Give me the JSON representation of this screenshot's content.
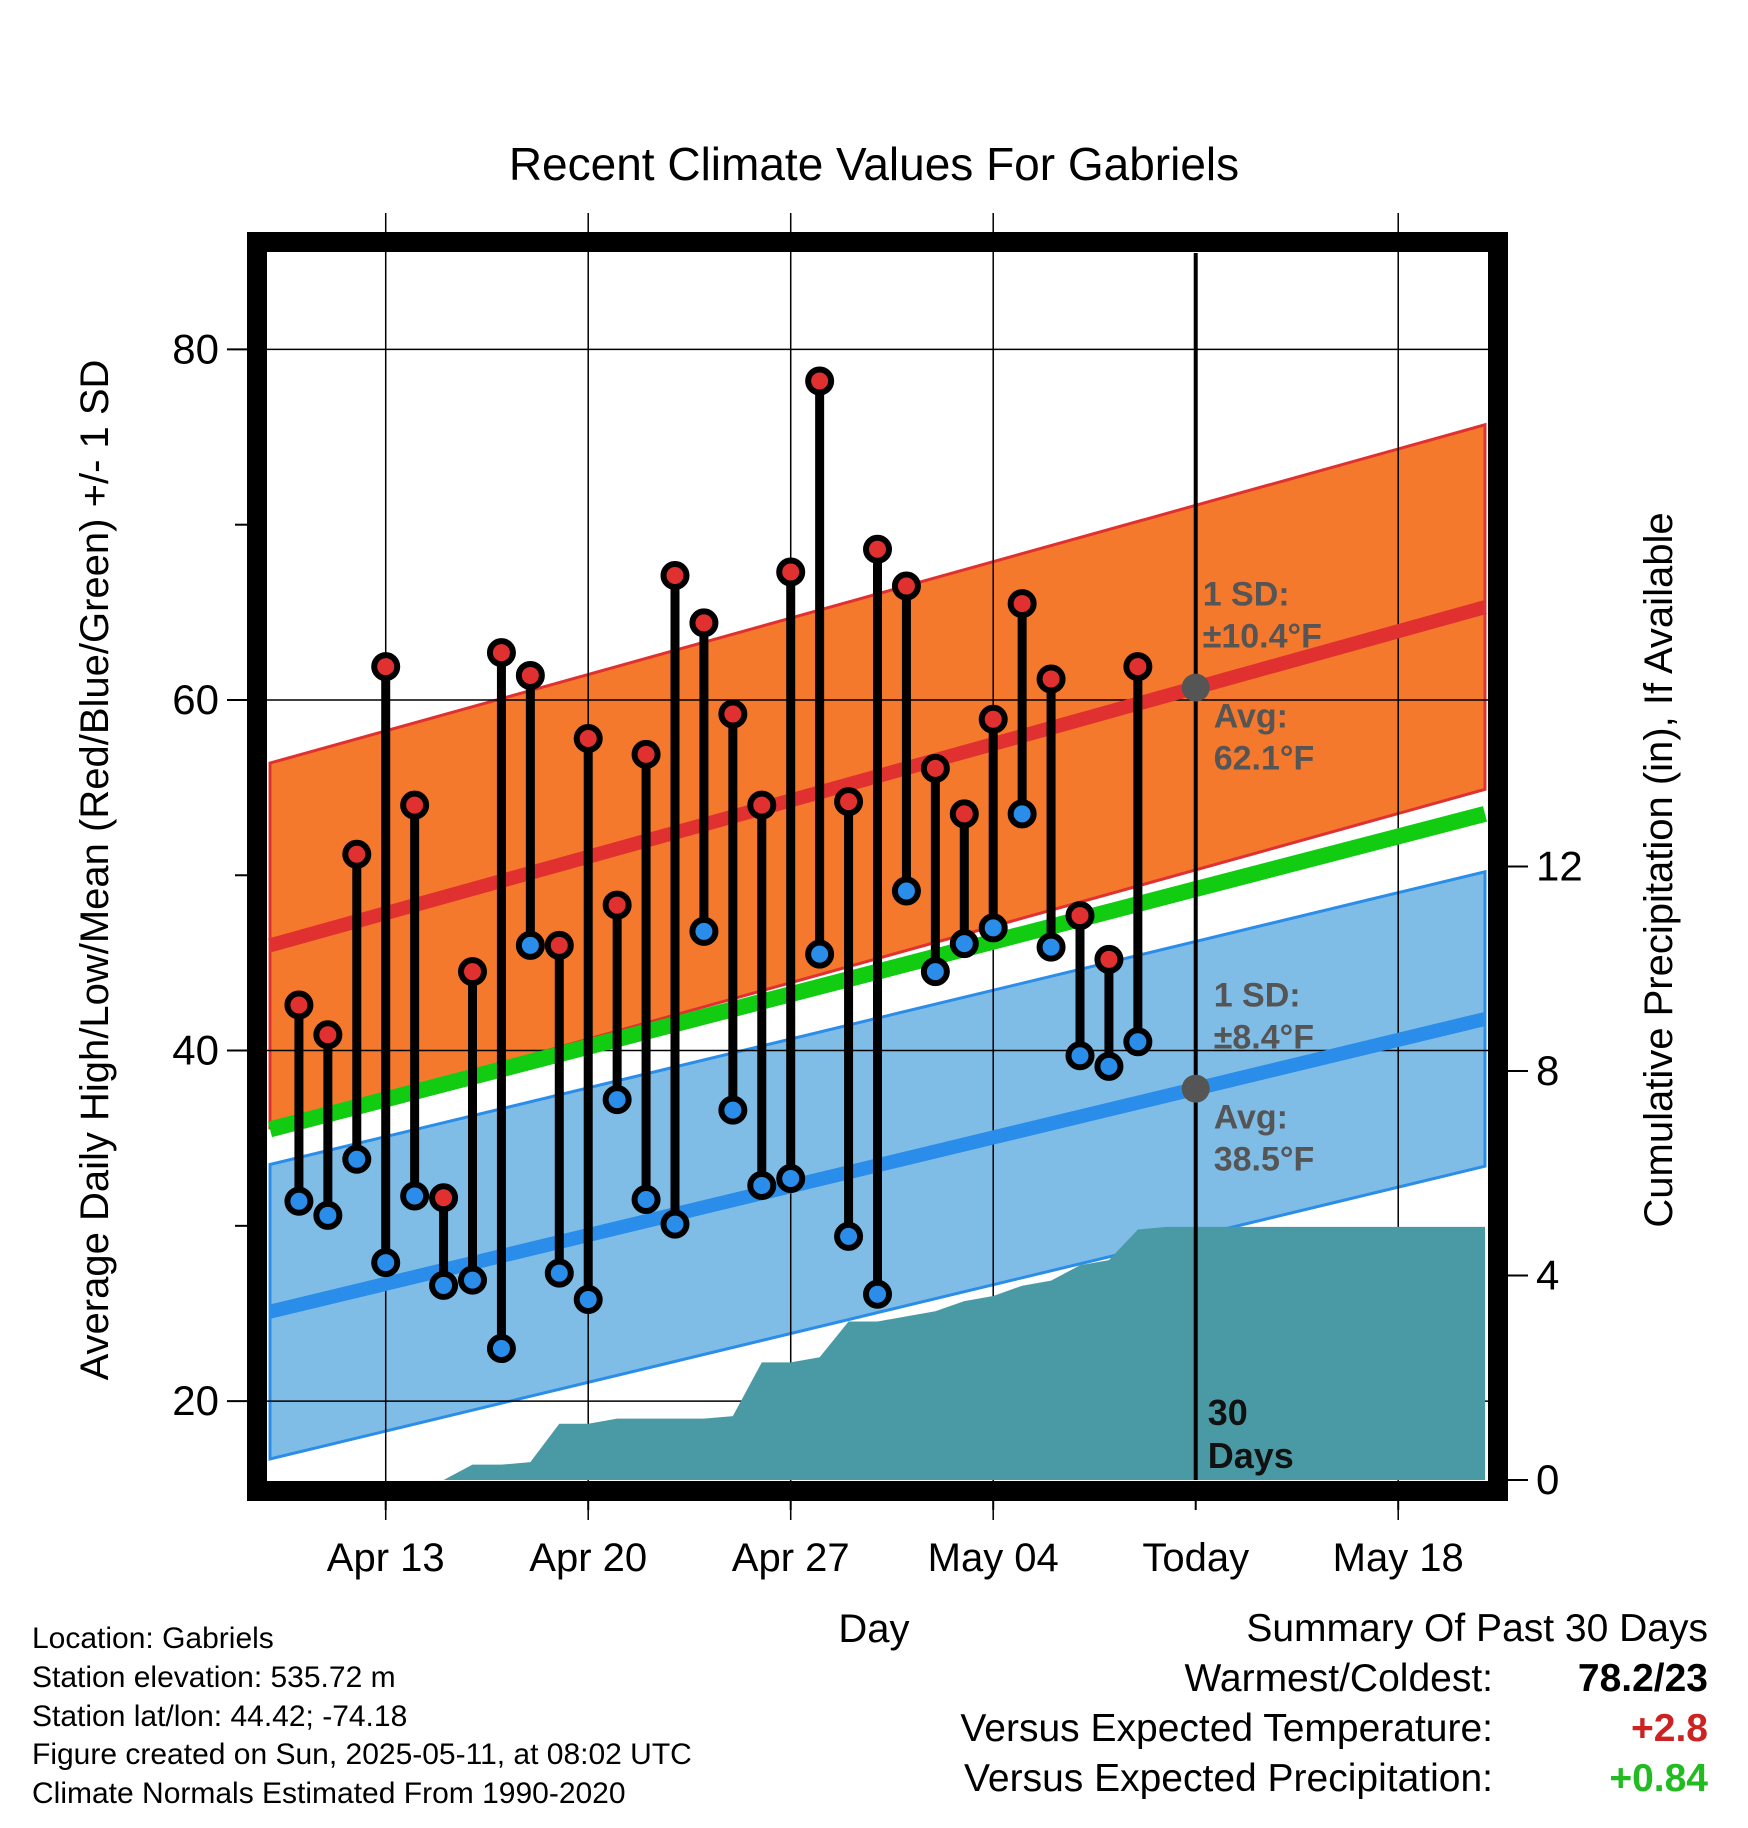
{
  "chart_data": {
    "type": "line",
    "title": "Recent Climate Values For Gabriels",
    "xlabel": "Day",
    "ylabel": "Average Daily High/Low/Mean (Red/Blue/Green) +/- 1 SD",
    "y2label": "Cumulative Precipitation (in), If Available",
    "ylim": [
      15.5,
      85.5
    ],
    "y_ticks": [
      20,
      40,
      60,
      80
    ],
    "y2lim": [
      0,
      24
    ],
    "y2_ticks": [
      0,
      4,
      8,
      12
    ],
    "xlim": [
      "2025-04-09",
      "2025-05-21"
    ],
    "x_ticks": [
      "2025-04-13",
      "2025-04-20",
      "2025-04-27",
      "2025-05-04",
      "2025-05-11",
      "2025-05-18"
    ],
    "x_tick_labels": [
      "Apr 13",
      "Apr 20",
      "Apr 27",
      "May 04",
      "Today",
      "May 18"
    ],
    "today": "2025-05-11",
    "grid": true,
    "colors": {
      "high": "#e03130",
      "high_band": "#f4792d",
      "low": "#2a8de9",
      "low_band": "#80bde6",
      "mean": "#11cc11",
      "precip": "#4a9aa5",
      "annotation": "#555555",
      "warm": "#cc2222",
      "wet": "#22bb22"
    },
    "daily": {
      "dates": [
        "2025-04-10",
        "2025-04-11",
        "2025-04-12",
        "2025-04-13",
        "2025-04-14",
        "2025-04-15",
        "2025-04-16",
        "2025-04-17",
        "2025-04-18",
        "2025-04-19",
        "2025-04-20",
        "2025-04-21",
        "2025-04-22",
        "2025-04-23",
        "2025-04-24",
        "2025-04-25",
        "2025-04-26",
        "2025-04-27",
        "2025-04-28",
        "2025-04-29",
        "2025-04-30",
        "2025-05-01",
        "2025-05-02",
        "2025-05-03",
        "2025-05-04",
        "2025-05-05",
        "2025-05-06",
        "2025-05-07",
        "2025-05-08",
        "2025-05-09",
        "2025-05-10"
      ],
      "high": [
        42.6,
        40.9,
        51.2,
        61.9,
        54.0,
        31.6,
        44.5,
        62.7,
        61.4,
        46.0,
        57.8,
        48.3,
        56.9,
        67.1,
        64.4,
        59.2,
        54.0,
        67.3,
        78.2,
        54.2,
        68.6,
        66.5,
        56.1,
        53.5,
        58.9,
        65.5,
        61.2,
        47.7,
        45.2,
        61.9,
        null
      ],
      "low": [
        31.4,
        30.6,
        33.8,
        27.9,
        31.7,
        26.6,
        26.9,
        23.0,
        46.0,
        27.3,
        25.8,
        37.2,
        31.5,
        30.1,
        46.8,
        36.6,
        32.3,
        32.7,
        45.5,
        29.4,
        26.1,
        49.1,
        44.5,
        46.1,
        47.0,
        53.5,
        45.9,
        39.7,
        39.1,
        40.5,
        null
      ]
    },
    "normals": {
      "dates": [
        "2025-04-09",
        "2025-05-21"
      ],
      "high_mean": [
        46.0,
        65.3
      ],
      "high_sd": 10.4,
      "low_mean": [
        25.1,
        41.8
      ],
      "low_sd": 8.4,
      "mean": [
        35.5,
        53.5
      ]
    },
    "precip": {
      "dates": [
        "2025-04-09",
        "2025-04-10",
        "2025-04-11",
        "2025-04-12",
        "2025-04-13",
        "2025-04-14",
        "2025-04-15",
        "2025-04-16",
        "2025-04-17",
        "2025-04-18",
        "2025-04-19",
        "2025-04-20",
        "2025-04-21",
        "2025-04-22",
        "2025-04-23",
        "2025-04-24",
        "2025-04-25",
        "2025-04-26",
        "2025-04-27",
        "2025-04-28",
        "2025-04-29",
        "2025-04-30",
        "2025-05-01",
        "2025-05-02",
        "2025-05-03",
        "2025-05-04",
        "2025-05-05",
        "2025-05-06",
        "2025-05-07",
        "2025-05-08",
        "2025-05-09",
        "2025-05-10",
        "2025-05-11",
        "2025-05-21"
      ],
      "values": [
        0,
        0,
        0,
        0,
        0,
        0,
        0,
        0.3,
        0.3,
        0.35,
        1.1,
        1.1,
        1.2,
        1.2,
        1.2,
        1.2,
        1.25,
        2.3,
        2.3,
        2.4,
        3.1,
        3.1,
        3.2,
        3.3,
        3.5,
        3.6,
        3.8,
        3.9,
        4.2,
        4.3,
        4.9,
        4.95,
        4.95,
        4.95
      ]
    },
    "annotations": {
      "high_sd_title": "1 SD:",
      "high_sd_value": "±10.4°F",
      "high_avg_title": "Avg:",
      "high_avg_value": "62.1°F",
      "low_sd_title": "1 SD:",
      "low_sd_value": "±8.4°F",
      "low_avg_title": "Avg:",
      "low_avg_value": "38.5°F",
      "days_number": "30",
      "days_word": "Days"
    }
  },
  "footer": {
    "location": "Location: Gabriels",
    "elevation": "Station elevation: 535.72 m",
    "latlon": "Station lat/lon: 44.42; -74.18",
    "created": "Figure created on Sun, 2025-05-11, at 08:02 UTC",
    "normals": "Climate Normals Estimated From 1990-2020"
  },
  "summary": {
    "title": "Summary Of Past 30 Days",
    "warmest_label": "Warmest/Coldest:",
    "warmest_value": "78.2/23",
    "temp_label": "Versus Expected Temperature:",
    "temp_value": "+2.8",
    "precip_label": "Versus Expected Precipitation:",
    "precip_value": "+0.84"
  }
}
